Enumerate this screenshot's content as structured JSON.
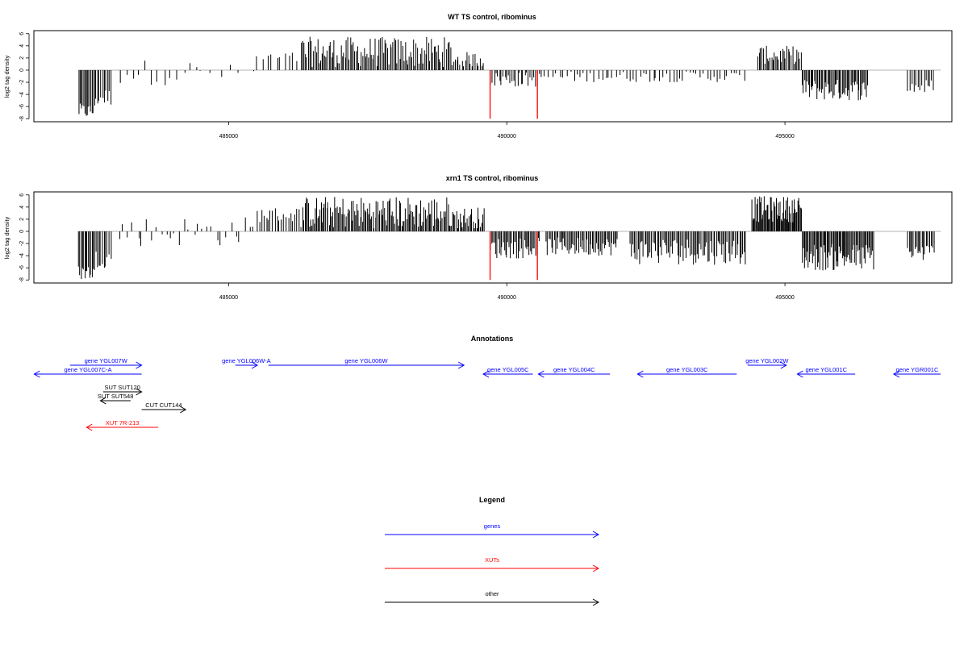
{
  "colors": {
    "bars": "#000000",
    "marker": "#ff0000",
    "genes": "#0000ff",
    "xuts": "#ff0000",
    "other": "#000000",
    "baseline": "#9a9a9a"
  },
  "chart_data": [
    {
      "type": "bar",
      "title": "WT TS control, ribominus",
      "ylabel": "log2 tag density",
      "xlim": [
        481500,
        498000
      ],
      "ylim": [
        -8.5,
        6.5
      ],
      "xticks": [
        485000,
        490000,
        495000
      ],
      "yticks": [
        6,
        4,
        2,
        0,
        -2,
        -4,
        -6,
        -8
      ],
      "red_markers_x": [
        489700,
        490550
      ],
      "segments": [
        {
          "x0": 482300,
          "x1": 482600,
          "min": -8,
          "max": -5.5,
          "n": 14
        },
        {
          "x0": 482600,
          "x1": 482900,
          "min": -6,
          "max": -3,
          "n": 10
        },
        {
          "x0": 483000,
          "x1": 484600,
          "min": -2.5,
          "max": 1.8,
          "n": 14
        },
        {
          "x0": 484600,
          "x1": 485500,
          "min": -2,
          "max": 1,
          "n": 5
        },
        {
          "x0": 485500,
          "x1": 486300,
          "min": 1,
          "max": 3,
          "n": 10
        },
        {
          "x0": 486300,
          "x1": 489000,
          "min": 0.5,
          "max": 5.5,
          "n": 110
        },
        {
          "x0": 489000,
          "x1": 489600,
          "min": 0.5,
          "max": 3,
          "n": 20
        },
        {
          "x0": 489700,
          "x1": 490600,
          "min": -2.8,
          "max": -0.3,
          "n": 28
        },
        {
          "x0": 490600,
          "x1": 492000,
          "min": -2,
          "max": -0.2,
          "n": 22
        },
        {
          "x0": 492000,
          "x1": 494300,
          "min": -2,
          "max": -0.2,
          "n": 38
        },
        {
          "x0": 494500,
          "x1": 495300,
          "min": 1,
          "max": 4,
          "n": 32
        },
        {
          "x0": 495300,
          "x1": 496500,
          "min": -5,
          "max": -1.5,
          "n": 55
        },
        {
          "x0": 497200,
          "x1": 497700,
          "min": -4,
          "max": -1.5,
          "n": 14
        }
      ]
    },
    {
      "type": "bar",
      "title": "xrn1 TS control, ribominus",
      "ylabel": "log2 tag density",
      "xlim": [
        481500,
        498000
      ],
      "ylim": [
        -8.5,
        6.5
      ],
      "xticks": [
        485000,
        490000,
        495000
      ],
      "yticks": [
        6,
        4,
        2,
        0,
        -2,
        -4,
        -6,
        -8
      ],
      "red_markers_x": [
        489700,
        490550
      ],
      "segments": [
        {
          "x0": 482300,
          "x1": 482600,
          "min": -8,
          "max": -5.5,
          "n": 14
        },
        {
          "x0": 482600,
          "x1": 482900,
          "min": -6,
          "max": -3,
          "n": 10
        },
        {
          "x0": 483000,
          "x1": 485500,
          "min": -2.5,
          "max": 2.5,
          "n": 30
        },
        {
          "x0": 485500,
          "x1": 486300,
          "min": 1.5,
          "max": 4,
          "n": 20
        },
        {
          "x0": 486300,
          "x1": 489000,
          "min": 0.5,
          "max": 5.8,
          "n": 130
        },
        {
          "x0": 489000,
          "x1": 489600,
          "min": 0.5,
          "max": 4,
          "n": 28
        },
        {
          "x0": 489700,
          "x1": 490600,
          "min": -4.5,
          "max": -1,
          "n": 40
        },
        {
          "x0": 490700,
          "x1": 492000,
          "min": -4,
          "max": -1,
          "n": 55
        },
        {
          "x0": 492200,
          "x1": 494300,
          "min": -5.5,
          "max": -1,
          "n": 85
        },
        {
          "x0": 494400,
          "x1": 495300,
          "min": 1.5,
          "max": 5.8,
          "n": 60
        },
        {
          "x0": 495300,
          "x1": 496600,
          "min": -6.5,
          "max": -2,
          "n": 70
        },
        {
          "x0": 497200,
          "x1": 497700,
          "min": -5,
          "max": -2,
          "n": 20
        }
      ]
    }
  ],
  "annotations": {
    "title": "Annotations",
    "items": [
      {
        "label": "gene YGL007W",
        "kind": "genes",
        "dir": "right",
        "x0": 482200,
        "x1": 483500,
        "level": 1
      },
      {
        "label": "gene YGL007C-A",
        "kind": "genes",
        "dir": "left",
        "x0": 481550,
        "x1": 483500,
        "level": 2
      },
      {
        "label": "gene YGL006W-A",
        "kind": "genes",
        "dir": "right",
        "x0": 485200,
        "x1": 485600,
        "level": 1
      },
      {
        "label": "gene YGL006W",
        "kind": "genes",
        "dir": "right",
        "x0": 485800,
        "x1": 489350,
        "level": 1
      },
      {
        "label": "gene YGL005C",
        "kind": "genes",
        "dir": "left",
        "x0": 489700,
        "x1": 490600,
        "level": 2
      },
      {
        "label": "gene YGL004C",
        "kind": "genes",
        "dir": "left",
        "x0": 490700,
        "x1": 492000,
        "level": 2
      },
      {
        "label": "gene YGL003C",
        "kind": "genes",
        "dir": "left",
        "x0": 492500,
        "x1": 494300,
        "level": 2
      },
      {
        "label": "gene YGL002W",
        "kind": "genes",
        "dir": "right",
        "x0": 494500,
        "x1": 495200,
        "level": 1
      },
      {
        "label": "gene YGL001C",
        "kind": "genes",
        "dir": "left",
        "x0": 495400,
        "x1": 496450,
        "level": 2
      },
      {
        "label": "gene YGR001C",
        "kind": "genes",
        "dir": "left",
        "x0": 497150,
        "x1": 498000,
        "level": 2
      },
      {
        "label": "SUT SUT120",
        "kind": "other",
        "dir": "right",
        "x0": 482800,
        "x1": 483500,
        "level": 4
      },
      {
        "label": "SUT SUT548",
        "kind": "other",
        "dir": "left",
        "x0": 482750,
        "x1": 483300,
        "level": 5
      },
      {
        "label": "CUT CUT144",
        "kind": "other",
        "dir": "right",
        "x0": 483500,
        "x1": 484300,
        "level": 6
      },
      {
        "label": "XUT 7R-213",
        "kind": "xuts",
        "dir": "left",
        "x0": 482500,
        "x1": 483800,
        "level": 8
      }
    ]
  },
  "legend": {
    "title": "Legend",
    "items": [
      {
        "label": "genes",
        "kind": "genes"
      },
      {
        "label": "XUTs",
        "kind": "xuts"
      },
      {
        "label": "other",
        "kind": "other"
      }
    ]
  }
}
